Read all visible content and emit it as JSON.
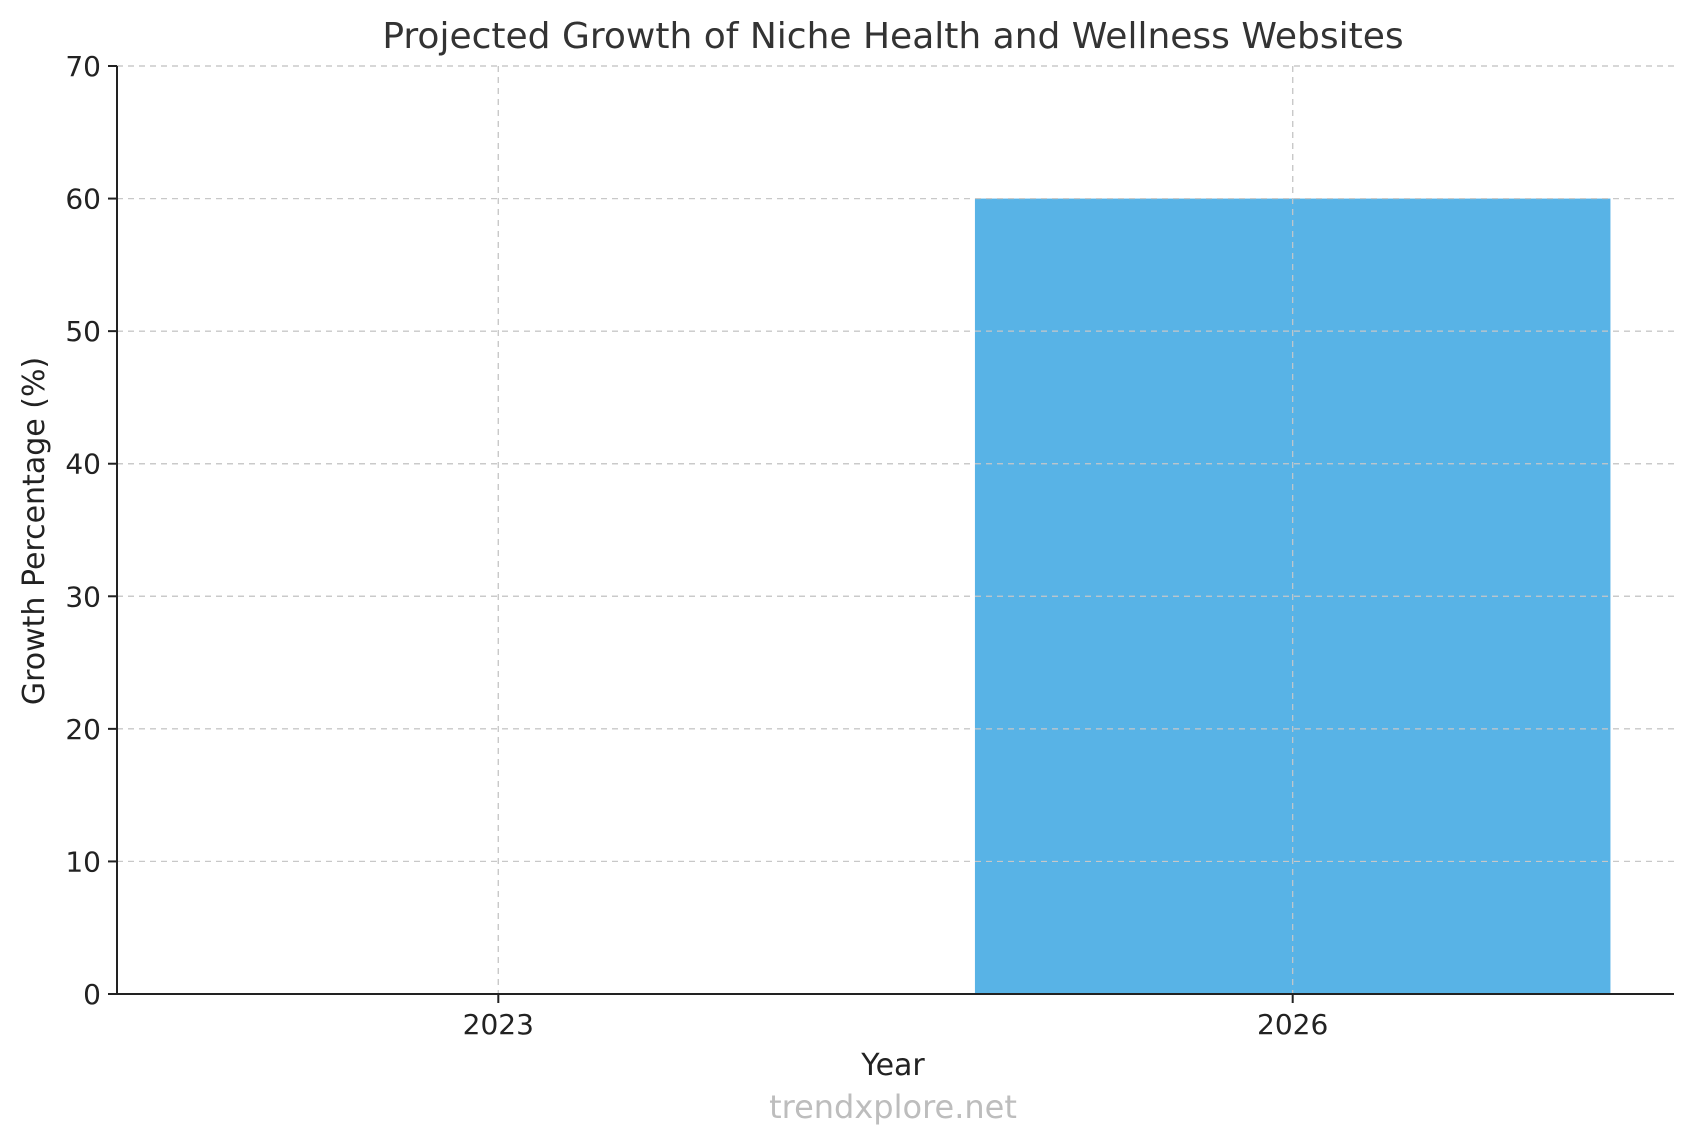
{
  "chart_data": {
    "type": "bar",
    "title": "Projected Growth of Niche Health and Wellness Websites",
    "xlabel": "Year",
    "ylabel": "Growth Percentage (%)",
    "categories": [
      "2023",
      "2026"
    ],
    "values": [
      0,
      60
    ],
    "ylim": [
      0,
      70
    ],
    "yticks": [
      0,
      10,
      20,
      30,
      40,
      50,
      60,
      70
    ],
    "grid": true,
    "bar_color": "#58b3e6"
  },
  "watermark": "trendxplore.net"
}
